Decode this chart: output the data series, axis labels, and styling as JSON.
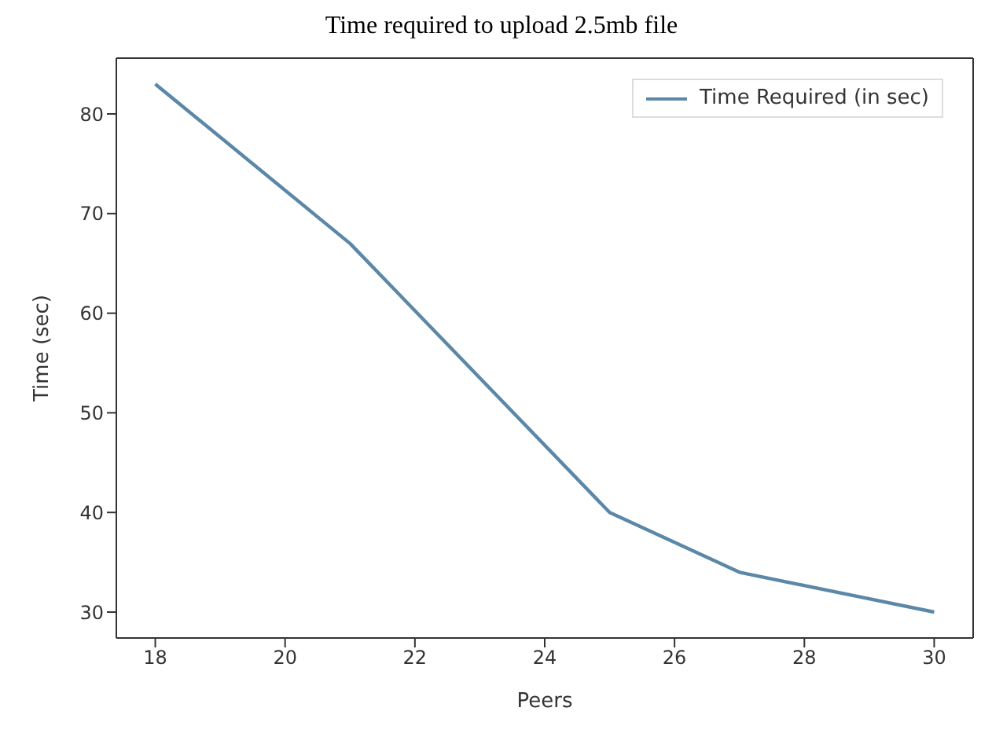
{
  "chart_data": {
    "type": "line",
    "title": "Time required to upload 2.5mb file",
    "xlabel": "Peers",
    "ylabel": "Time (sec)",
    "x": [
      18,
      21,
      25,
      27,
      30
    ],
    "series": [
      {
        "name": "Time Required (in sec)",
        "color": "#5b87a8",
        "values": [
          83,
          67,
          40,
          34,
          30
        ]
      }
    ],
    "xlim": [
      17.4,
      30.6
    ],
    "xticks": [
      18,
      20,
      22,
      24,
      26,
      28,
      30
    ],
    "ylim": [
      27.4,
      85.6
    ],
    "yticks": [
      30,
      40,
      50,
      60,
      70,
      80
    ],
    "legend": "top right",
    "grid": false,
    "marker": "none",
    "line_style": "solid"
  }
}
